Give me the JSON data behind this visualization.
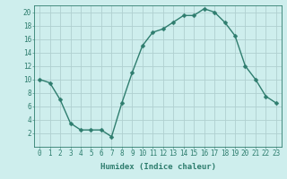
{
  "x": [
    0,
    1,
    2,
    3,
    4,
    5,
    6,
    7,
    8,
    9,
    10,
    11,
    12,
    13,
    14,
    15,
    16,
    17,
    18,
    19,
    20,
    21,
    22,
    23
  ],
  "y": [
    10,
    9.5,
    7,
    3.5,
    2.5,
    2.5,
    2.5,
    1.5,
    6.5,
    11,
    15,
    17,
    17.5,
    18.5,
    19.5,
    19.5,
    20.5,
    20,
    18.5,
    16.5,
    12,
    10,
    7.5,
    6.5
  ],
  "line_color": "#2e7d6e",
  "marker_color": "#2e7d6e",
  "bg_color": "#ceeeed",
  "grid_color": "#b0d0d0",
  "xlabel": "Humidex (Indice chaleur)",
  "xlim": [
    -0.5,
    23.5
  ],
  "ylim": [
    0,
    21
  ],
  "yticks": [
    2,
    4,
    6,
    8,
    10,
    12,
    14,
    16,
    18,
    20
  ],
  "xticks": [
    0,
    1,
    2,
    3,
    4,
    5,
    6,
    7,
    8,
    9,
    10,
    11,
    12,
    13,
    14,
    15,
    16,
    17,
    18,
    19,
    20,
    21,
    22,
    23
  ],
  "xlabel_fontsize": 6.5,
  "tick_fontsize": 5.5,
  "linewidth": 1.0,
  "markersize": 2.5
}
